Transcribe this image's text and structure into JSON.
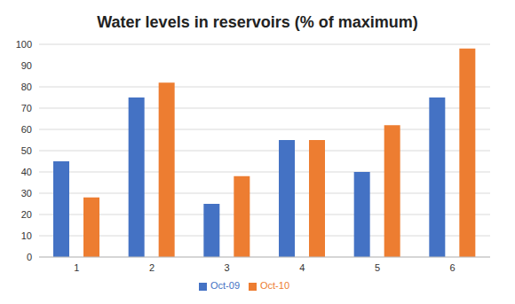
{
  "chart_data": {
    "type": "bar",
    "title": "Water levels in reservoirs (% of maximum)",
    "categories": [
      "1",
      "2",
      "3",
      "4",
      "5",
      "6"
    ],
    "series": [
      {
        "name": "Oct-09",
        "color": "#4472c4",
        "values": [
          45,
          75,
          25,
          55,
          40,
          75
        ]
      },
      {
        "name": "Oct-10",
        "color": "#ed7d31",
        "values": [
          28,
          82,
          38,
          55,
          62,
          98
        ]
      }
    ],
    "ylim": [
      0,
      100
    ],
    "yticks": [
      0,
      10,
      20,
      30,
      40,
      50,
      60,
      70,
      80,
      90,
      100
    ],
    "grid": true,
    "legend": "bottom"
  }
}
